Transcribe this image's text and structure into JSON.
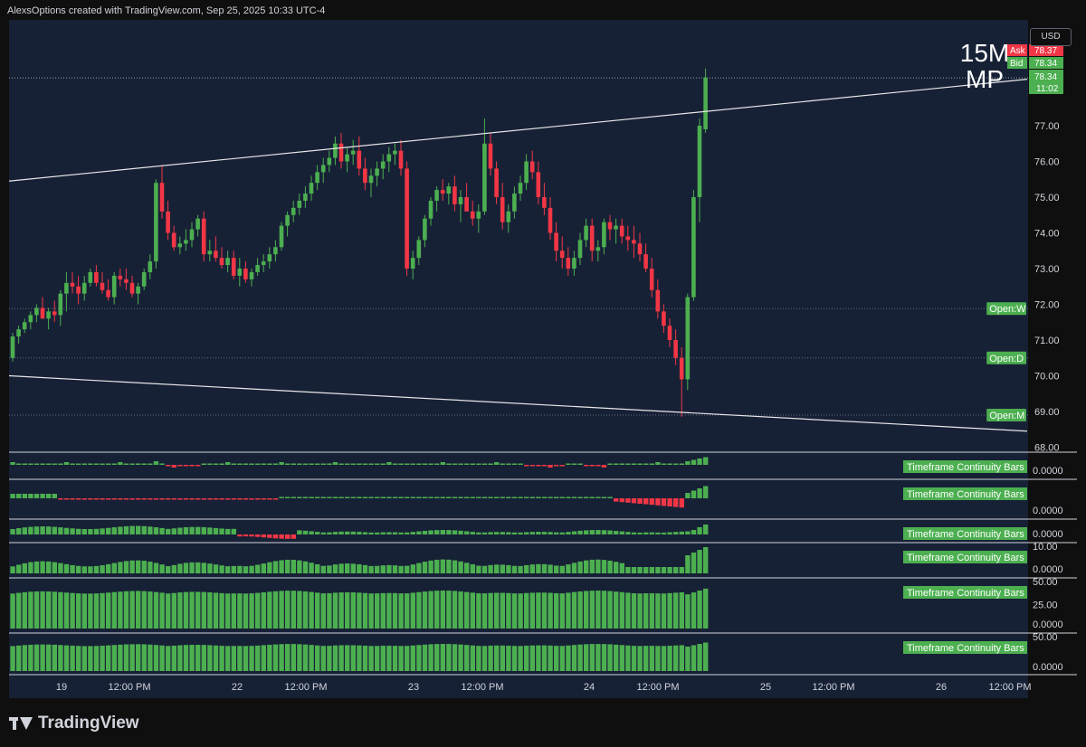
{
  "header": {
    "text": "AlexsOptions created with TradingView.com, Sep 25, 2025 10:33 UTC-4"
  },
  "currency": "USD",
  "timeframe_label": {
    "line1": "15M",
    "line2": "MP"
  },
  "price_tags": {
    "ask_label": "Ask",
    "ask_value": "78.37",
    "bid_label": "Bid",
    "bid_value": "78.34",
    "last_value": "78.34",
    "countdown": "11:02"
  },
  "footer": {
    "brand": "TradingView"
  },
  "colors": {
    "up": "#4caf50",
    "down": "#f23645",
    "bg": "#172136",
    "frame": "#0f0f0f",
    "text": "#d1d4dc"
  },
  "chart_data": {
    "type": "candlestick",
    "ylim": [
      68,
      78.8
    ],
    "y_ticks": [
      "68.00",
      "69.00",
      "70.00",
      "71.00",
      "72.00",
      "73.00",
      "74.00",
      "75.00",
      "76.00",
      "77.00"
    ],
    "x_ticks": [
      "19",
      "12:00 PM",
      "22",
      "12:00 PM",
      "23",
      "12:00 PM",
      "24",
      "12:00 PM",
      "25",
      "12:00 PM",
      "26",
      "12:00 PM"
    ],
    "reference_levels": [
      {
        "label": "Open:W",
        "value": 71.88
      },
      {
        "label": "Open:D",
        "value": 70.5
      },
      {
        "label": "Open:M",
        "value": 68.9
      }
    ],
    "trendlines": [
      {
        "from": [
          "2025-09-18 08:00",
          75.45
        ],
        "to": [
          "2025-09-25 13:00",
          78.3
        ]
      },
      {
        "from": [
          "2025-09-18 08:00",
          70.0
        ],
        "to": [
          "2025-09-25 13:00",
          68.45
        ]
      }
    ],
    "candles": [
      [
        70.5,
        71.2,
        70.4,
        71.1
      ],
      [
        71.1,
        71.4,
        70.9,
        71.3
      ],
      [
        71.3,
        71.6,
        71.2,
        71.5
      ],
      [
        71.5,
        71.8,
        71.3,
        71.7
      ],
      [
        71.7,
        72.0,
        71.5,
        71.9
      ],
      [
        71.9,
        72.2,
        71.6,
        71.6
      ],
      [
        71.6,
        71.9,
        71.3,
        71.8
      ],
      [
        71.8,
        72.1,
        71.5,
        71.7
      ],
      [
        71.7,
        72.4,
        71.4,
        72.3
      ],
      [
        72.3,
        72.9,
        71.8,
        72.6
      ],
      [
        72.6,
        72.9,
        72.3,
        72.5
      ],
      [
        72.5,
        72.8,
        72.0,
        72.3
      ],
      [
        72.3,
        72.8,
        72.1,
        72.6
      ],
      [
        72.6,
        73.0,
        72.5,
        72.9
      ],
      [
        72.9,
        73.1,
        72.5,
        72.6
      ],
      [
        72.6,
        72.9,
        72.3,
        72.4
      ],
      [
        72.4,
        72.7,
        72.1,
        72.2
      ],
      [
        72.2,
        72.9,
        72.0,
        72.8
      ],
      [
        72.8,
        73.0,
        72.5,
        72.7
      ],
      [
        72.7,
        73.0,
        72.4,
        72.6
      ],
      [
        72.6,
        72.8,
        72.2,
        72.3
      ],
      [
        72.3,
        72.6,
        72.0,
        72.5
      ],
      [
        72.5,
        73.0,
        72.4,
        72.9
      ],
      [
        72.9,
        73.4,
        72.7,
        73.2
      ],
      [
        73.2,
        75.5,
        73.0,
        75.4
      ],
      [
        75.4,
        75.9,
        74.4,
        74.6
      ],
      [
        74.6,
        74.9,
        73.8,
        74.0
      ],
      [
        74.0,
        74.2,
        73.5,
        73.6
      ],
      [
        73.6,
        73.9,
        73.4,
        73.7
      ],
      [
        73.7,
        74.1,
        73.5,
        73.8
      ],
      [
        73.8,
        74.3,
        73.6,
        74.1
      ],
      [
        74.1,
        74.5,
        73.9,
        74.4
      ],
      [
        74.4,
        74.6,
        73.2,
        73.4
      ],
      [
        73.4,
        73.8,
        73.2,
        73.5
      ],
      [
        73.5,
        73.9,
        73.2,
        73.3
      ],
      [
        73.3,
        73.6,
        73.0,
        73.1
      ],
      [
        73.1,
        73.5,
        72.9,
        73.3
      ],
      [
        73.3,
        73.5,
        72.7,
        72.8
      ],
      [
        72.8,
        73.3,
        72.5,
        73.0
      ],
      [
        73.0,
        73.2,
        72.6,
        72.7
      ],
      [
        72.7,
        73.0,
        72.5,
        72.9
      ],
      [
        72.9,
        73.3,
        72.8,
        73.1
      ],
      [
        73.1,
        73.4,
        72.9,
        73.2
      ],
      [
        73.2,
        73.6,
        73.0,
        73.4
      ],
      [
        73.4,
        73.8,
        73.2,
        73.6
      ],
      [
        73.6,
        74.3,
        73.5,
        74.2
      ],
      [
        74.2,
        74.6,
        73.9,
        74.5
      ],
      [
        74.5,
        74.9,
        74.3,
        74.7
      ],
      [
        74.7,
        75.1,
        74.5,
        74.9
      ],
      [
        74.9,
        75.3,
        74.7,
        75.1
      ],
      [
        75.1,
        75.6,
        74.9,
        75.4
      ],
      [
        75.4,
        75.9,
        75.2,
        75.7
      ],
      [
        75.7,
        76.1,
        75.4,
        75.9
      ],
      [
        75.9,
        76.3,
        75.7,
        76.1
      ],
      [
        76.1,
        76.7,
        75.9,
        76.5
      ],
      [
        76.5,
        76.8,
        75.8,
        76.0
      ],
      [
        76.0,
        76.4,
        75.7,
        76.2
      ],
      [
        76.2,
        76.6,
        75.9,
        76.3
      ],
      [
        76.3,
        76.7,
        75.6,
        75.8
      ],
      [
        75.8,
        76.1,
        75.2,
        75.4
      ],
      [
        75.4,
        75.8,
        75.0,
        75.6
      ],
      [
        75.6,
        76.0,
        75.3,
        75.8
      ],
      [
        75.8,
        76.2,
        75.5,
        76.0
      ],
      [
        76.0,
        76.4,
        75.7,
        76.2
      ],
      [
        76.2,
        76.5,
        75.9,
        76.3
      ],
      [
        76.3,
        76.6,
        75.6,
        75.8
      ],
      [
        75.8,
        76.0,
        72.8,
        73.0
      ],
      [
        73.0,
        73.5,
        72.7,
        73.3
      ],
      [
        73.3,
        73.9,
        73.1,
        73.8
      ],
      [
        73.8,
        74.5,
        73.6,
        74.4
      ],
      [
        74.4,
        75.0,
        74.2,
        74.9
      ],
      [
        74.9,
        75.3,
        74.6,
        75.2
      ],
      [
        75.2,
        75.5,
        74.9,
        75.1
      ],
      [
        75.1,
        75.4,
        74.8,
        75.3
      ],
      [
        75.3,
        75.6,
        74.6,
        74.8
      ],
      [
        74.8,
        75.2,
        74.3,
        75.0
      ],
      [
        75.0,
        75.4,
        74.7,
        74.6
      ],
      [
        74.6,
        74.9,
        74.2,
        74.4
      ],
      [
        74.4,
        74.8,
        74.0,
        74.6
      ],
      [
        74.6,
        77.2,
        74.5,
        76.5
      ],
      [
        76.5,
        76.8,
        75.6,
        75.8
      ],
      [
        75.8,
        76.0,
        74.8,
        75.0
      ],
      [
        75.0,
        75.4,
        74.1,
        74.3
      ],
      [
        74.3,
        74.8,
        74.0,
        74.6
      ],
      [
        74.6,
        75.3,
        74.4,
        75.1
      ],
      [
        75.1,
        75.6,
        74.9,
        75.4
      ],
      [
        75.4,
        76.2,
        75.2,
        76.0
      ],
      [
        76.0,
        76.3,
        75.5,
        75.7
      ],
      [
        75.7,
        76.0,
        74.8,
        75.0
      ],
      [
        75.0,
        75.4,
        74.5,
        74.7
      ],
      [
        74.7,
        75.0,
        73.8,
        74.0
      ],
      [
        74.0,
        74.3,
        73.2,
        73.5
      ],
      [
        73.5,
        73.9,
        73.0,
        73.3
      ],
      [
        73.3,
        73.6,
        72.8,
        73.0
      ],
      [
        73.0,
        73.5,
        72.8,
        73.3
      ],
      [
        73.3,
        74.0,
        73.1,
        73.8
      ],
      [
        73.8,
        74.4,
        73.6,
        74.2
      ],
      [
        74.2,
        74.4,
        73.2,
        73.5
      ],
      [
        73.5,
        73.8,
        73.2,
        73.6
      ],
      [
        73.6,
        74.4,
        73.4,
        74.3
      ],
      [
        74.3,
        74.5,
        73.8,
        74.1
      ],
      [
        74.1,
        74.4,
        73.7,
        74.2
      ],
      [
        74.2,
        74.4,
        73.7,
        73.9
      ],
      [
        73.9,
        74.2,
        73.5,
        73.8
      ],
      [
        73.8,
        74.2,
        73.3,
        73.7
      ],
      [
        73.7,
        74.0,
        73.2,
        73.4
      ],
      [
        73.4,
        73.7,
        72.9,
        73.0
      ],
      [
        73.0,
        73.3,
        72.2,
        72.4
      ],
      [
        72.4,
        72.7,
        71.6,
        71.8
      ],
      [
        71.8,
        72.0,
        71.2,
        71.4
      ],
      [
        71.4,
        71.6,
        70.8,
        71.0
      ],
      [
        71.0,
        71.3,
        70.3,
        70.5
      ],
      [
        70.5,
        70.8,
        68.85,
        69.9
      ],
      [
        69.9,
        72.3,
        69.6,
        72.2
      ],
      [
        72.2,
        75.2,
        72.1,
        75.0
      ],
      [
        75.0,
        77.2,
        74.3,
        77.0
      ],
      [
        76.9,
        78.6,
        76.8,
        78.35
      ]
    ],
    "indicators": [
      {
        "name": "Timeframe Continuity Bars",
        "value_label": "0.0000",
        "axis_labels": []
      },
      {
        "name": "Timeframe Continuity Bars",
        "value_label": "0.0000",
        "axis_labels": []
      },
      {
        "name": "Timeframe Continuity Bars",
        "value_label": "0.0000",
        "axis_labels": []
      },
      {
        "name": "Timeframe Continuity Bars",
        "value_label": "0.0000",
        "axis_labels": [
          "10.00"
        ]
      },
      {
        "name": "Timeframe Continuity Bars",
        "value_label": "0.0000",
        "axis_labels": [
          "50.00",
          "25.00"
        ]
      },
      {
        "name": "Timeframe Continuity Bars",
        "value_label": "0.0000",
        "axis_labels": [
          "50.00"
        ]
      }
    ]
  }
}
